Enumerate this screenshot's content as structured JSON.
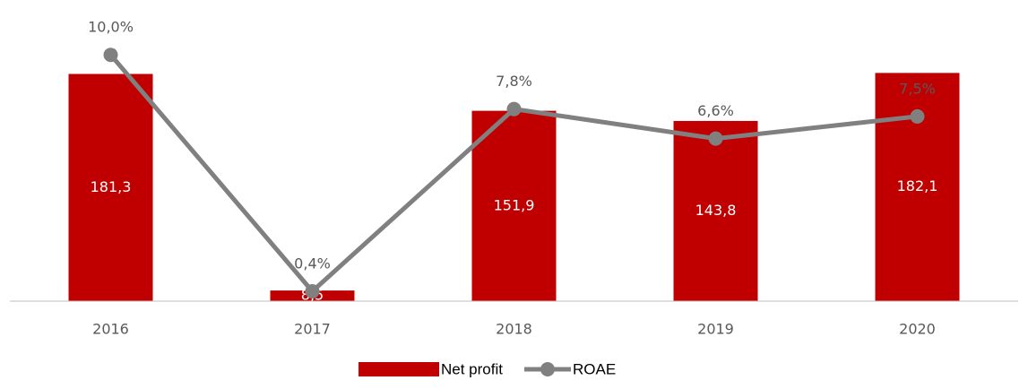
{
  "chart_data": {
    "type": "bar",
    "categories": [
      "2016",
      "2017",
      "2018",
      "2019",
      "2020"
    ],
    "ylim": [
      0,
      226
    ],
    "y2lim": [
      0,
      11.5
    ],
    "series": [
      {
        "name": "Net profit",
        "type": "bar",
        "color": "#c00000",
        "values": [
          181.3,
          8.5,
          151.9,
          143.8,
          182.1
        ],
        "value_labels": [
          "181,3",
          "8,5",
          "151,9",
          "143,8",
          "182,1"
        ]
      },
      {
        "name": "ROAE",
        "type": "line",
        "axis": "y2",
        "color": "#808080",
        "values": [
          10.0,
          0.4,
          7.8,
          6.6,
          7.5
        ],
        "value_labels": [
          "10,0%",
          "0,4%",
          "7,8%",
          "6,6%",
          "7,5%"
        ]
      }
    ],
    "legend": "bottom"
  }
}
